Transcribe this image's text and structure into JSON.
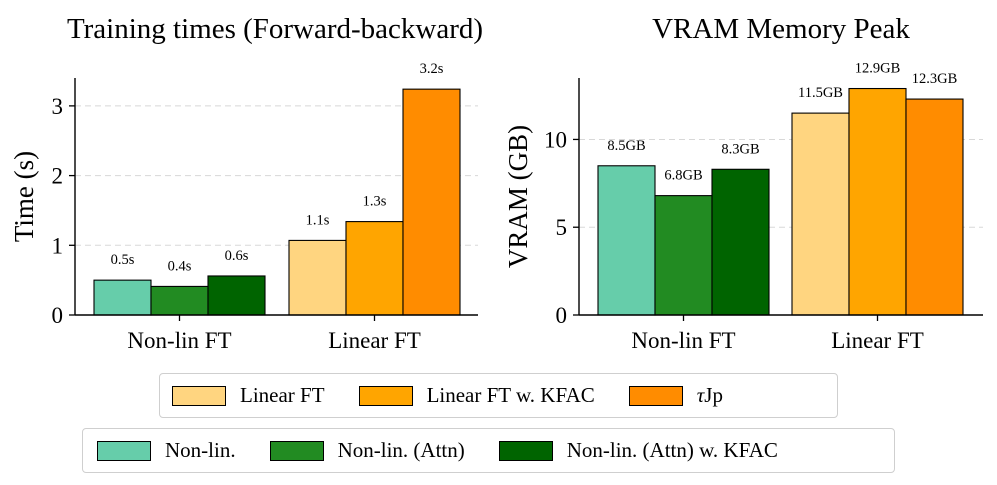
{
  "chart_data": [
    {
      "type": "bar",
      "title": "Training times (Forward-backward)",
      "xlabel": "",
      "ylabel": "Time (s)",
      "ylim": [
        0,
        3.4
      ],
      "yticks": [
        0,
        1,
        2,
        3
      ],
      "grid": "y-dashed",
      "groups": [
        {
          "label": "Non-lin FT",
          "bars": [
            {
              "series": "Non-lin.",
              "value": 0.5,
              "label": "0.5s"
            },
            {
              "series": "Non-lin. (Attn)",
              "value": 0.41,
              "label": "0.4s"
            },
            {
              "series": "Non-lin. (Attn) w. KFAC",
              "value": 0.56,
              "label": "0.6s"
            }
          ]
        },
        {
          "label": "Linear FT",
          "bars": [
            {
              "series": "Linear FT",
              "value": 1.07,
              "label": "1.1s"
            },
            {
              "series": "Linear FT w. KFAC",
              "value": 1.34,
              "label": "1.3s"
            },
            {
              "series": "τJp",
              "value": 3.24,
              "label": "3.2s"
            }
          ]
        }
      ]
    },
    {
      "type": "bar",
      "title": "VRAM Memory Peak",
      "xlabel": "",
      "ylabel": "VRAM (GB)",
      "ylim": [
        0,
        13.5
      ],
      "yticks": [
        0,
        5,
        10
      ],
      "grid": "y-dashed",
      "groups": [
        {
          "label": "Non-lin FT",
          "bars": [
            {
              "series": "Non-lin.",
              "value": 8.5,
              "label": "8.5GB"
            },
            {
              "series": "Non-lin. (Attn)",
              "value": 6.8,
              "label": "6.8GB"
            },
            {
              "series": "Non-lin. (Attn) w. KFAC",
              "value": 8.3,
              "label": "8.3GB"
            }
          ]
        },
        {
          "label": "Linear FT",
          "bars": [
            {
              "series": "Linear FT",
              "value": 11.5,
              "label": "11.5GB"
            },
            {
              "series": "Linear FT w. KFAC",
              "value": 12.9,
              "label": "12.9GB"
            },
            {
              "series": "τJp",
              "value": 12.3,
              "label": "12.3GB"
            }
          ]
        }
      ]
    }
  ],
  "series_colors": {
    "Non-lin.": "#66cdaa",
    "Non-lin. (Attn)": "#228b22",
    "Non-lin. (Attn) w. KFAC": "#006400",
    "Linear FT": "#ffd580",
    "Linear FT w. KFAC": "#ffa500",
    "τJp": "#ff8c00"
  },
  "legend": {
    "top": [
      {
        "label": "Linear FT",
        "color": "#ffd580"
      },
      {
        "label": "Linear FT w. KFAC",
        "color": "#ffa500"
      },
      {
        "label_prefix": "τ",
        "label_rest": "Jp",
        "color": "#ff8c00"
      }
    ],
    "bottom": [
      {
        "label": "Non-lin.",
        "color": "#66cdaa"
      },
      {
        "label": "Non-lin. (Attn)",
        "color": "#228b22"
      },
      {
        "label": "Non-lin. (Attn) w. KFAC",
        "color": "#006400"
      }
    ]
  }
}
